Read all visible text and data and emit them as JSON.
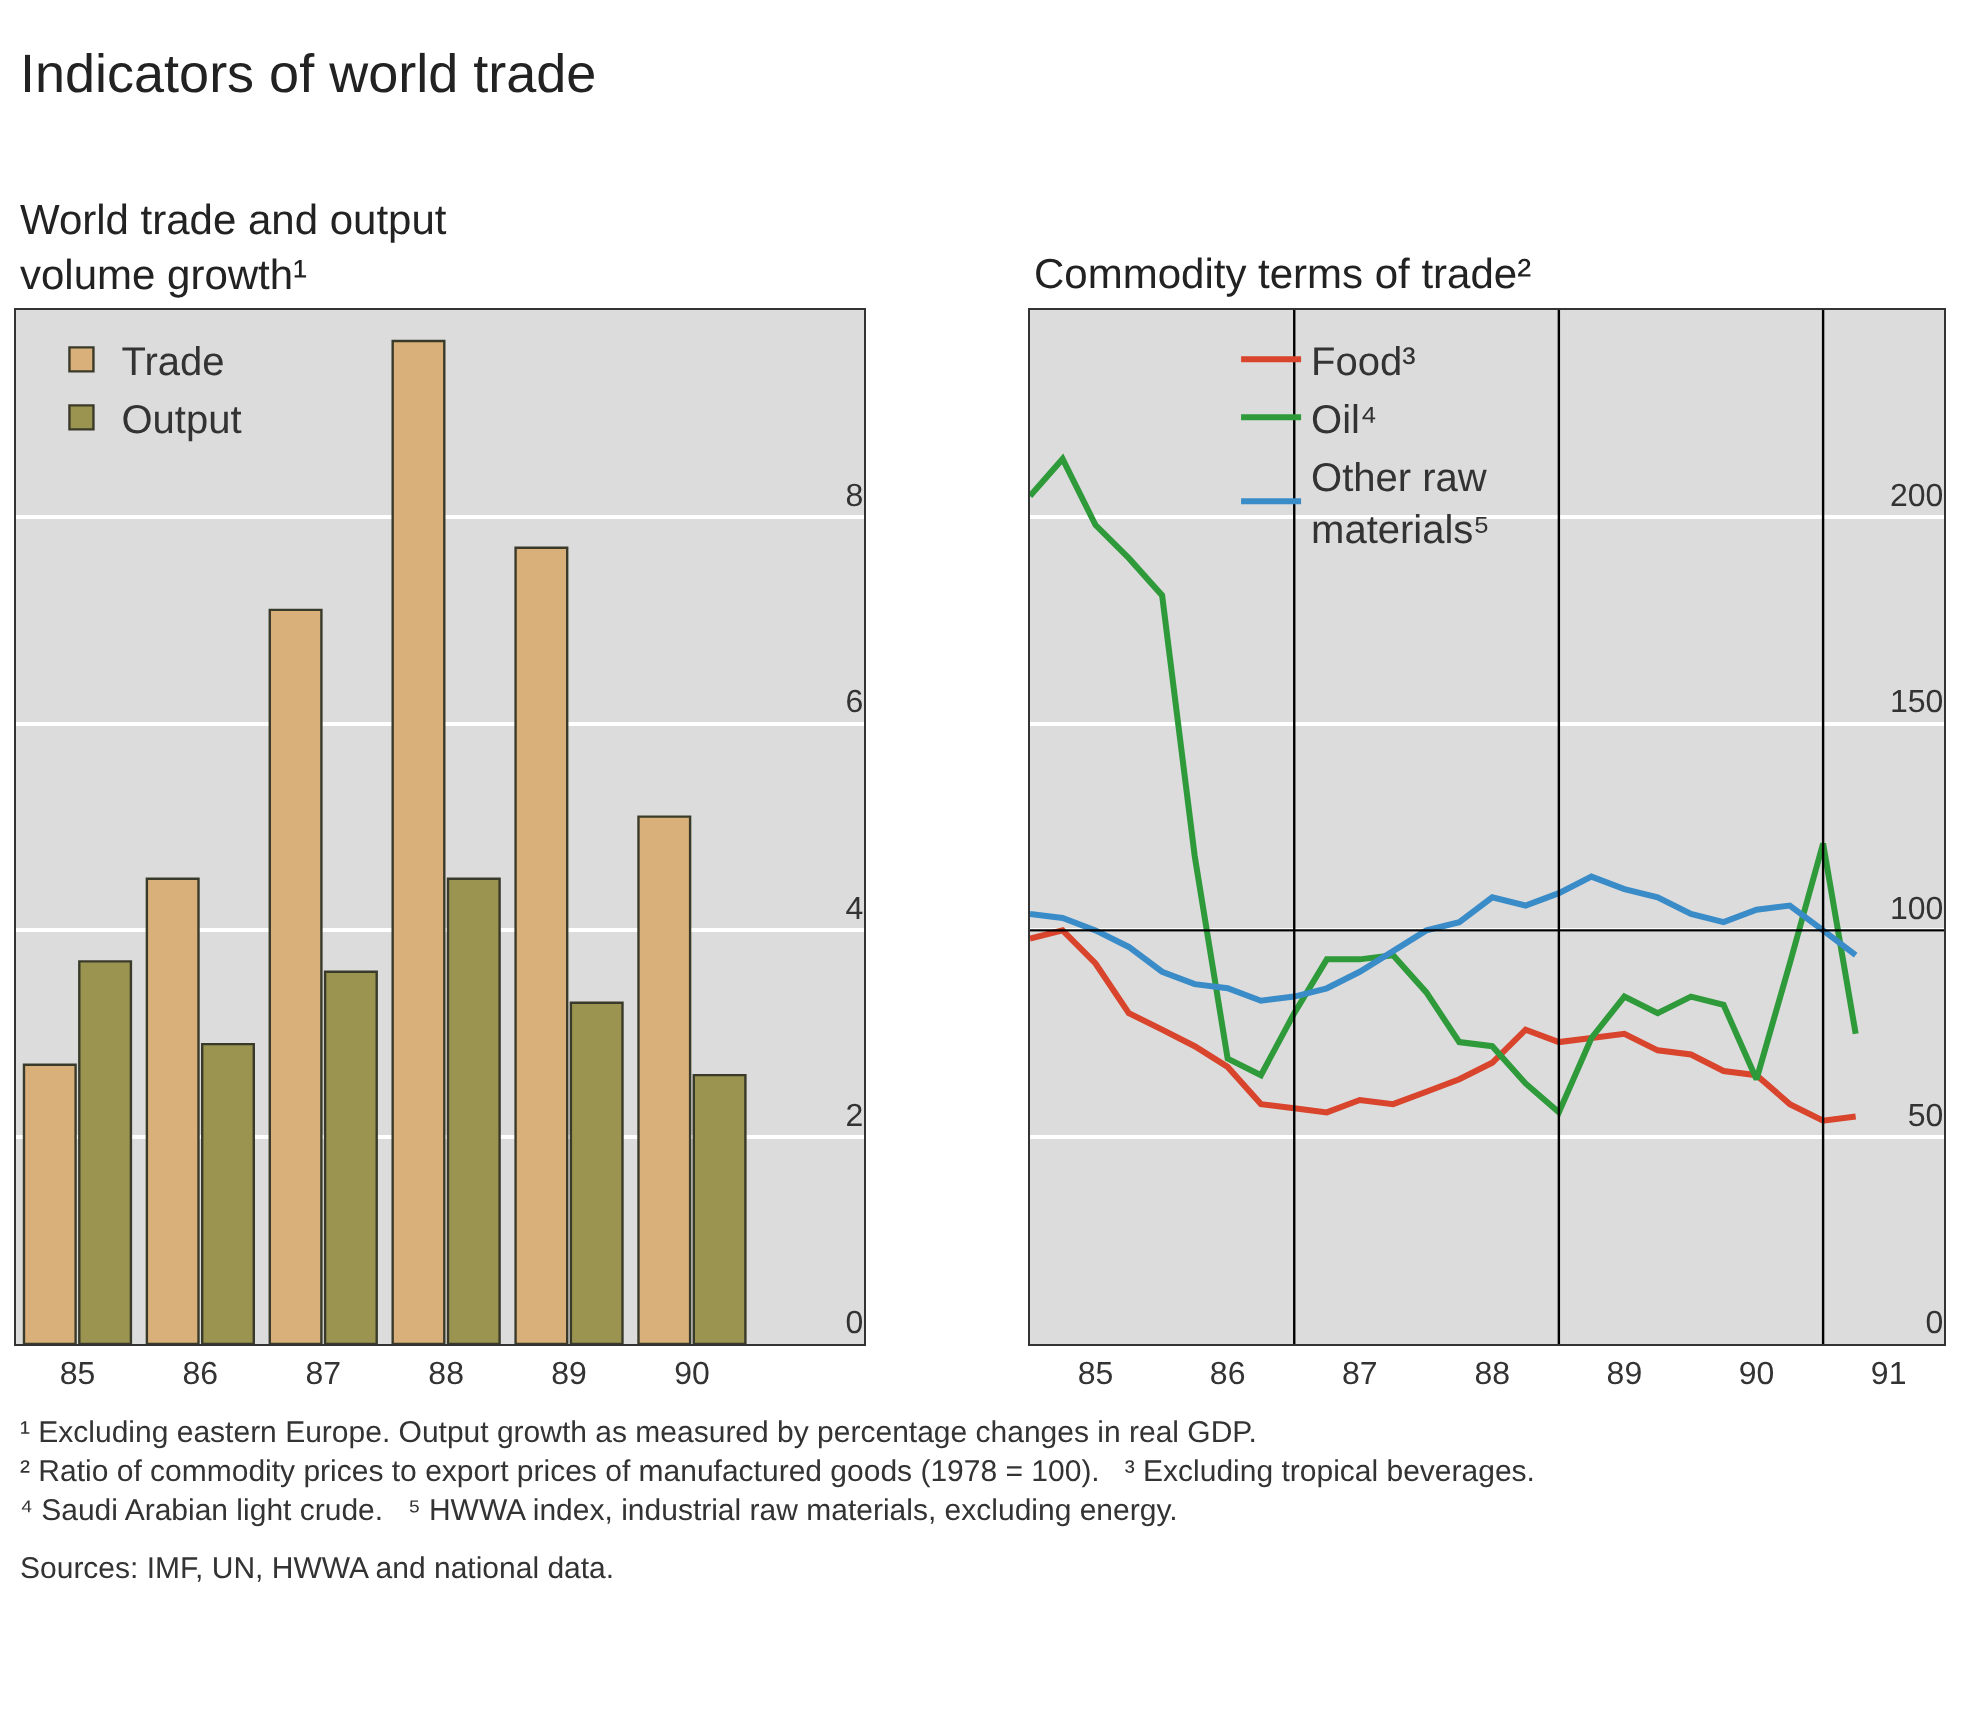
{
  "chart_data": [
    {
      "type": "bar",
      "title": "Indicators of world trade",
      "subtitle": "World trade and output volume growth¹",
      "categories": [
        "85",
        "86",
        "87",
        "88",
        "89",
        "90"
      ],
      "series": [
        {
          "name": "Trade",
          "color": "#d9b07a",
          "values": [
            2.7,
            4.5,
            7.1,
            9.7,
            7.7,
            5.1
          ]
        },
        {
          "name": "Output",
          "color": "#9a9450",
          "values": [
            3.7,
            2.9,
            3.6,
            4.5,
            3.3,
            2.6
          ]
        }
      ],
      "ylim": [
        0,
        10
      ],
      "yticks": [
        0,
        2,
        4,
        6,
        8
      ],
      "grid": "y",
      "legend": "top left"
    },
    {
      "type": "line",
      "subtitle": "Commodity terms of trade²",
      "x": [
        "1985-01",
        "1985-04",
        "1985-07",
        "1985-10",
        "1986-01",
        "1986-04",
        "1986-07",
        "1986-10",
        "1987-01",
        "1987-04",
        "1987-07",
        "1987-10",
        "1988-01",
        "1988-04",
        "1988-07",
        "1988-10",
        "1989-01",
        "1989-04",
        "1989-07",
        "1989-10",
        "1990-01",
        "1990-04",
        "1990-07",
        "1990-10",
        "1991-01",
        "1991-04"
      ],
      "series": [
        {
          "name": "Food³",
          "color": "#d9442c",
          "values": [
            98,
            100,
            92,
            80,
            76,
            72,
            67,
            58,
            57,
            56,
            59,
            58,
            61,
            64,
            68,
            76,
            73,
            74,
            75,
            71,
            70,
            66,
            65,
            58,
            54,
            55
          ]
        },
        {
          "name": "Oil⁴",
          "color": "#2e9a3a",
          "values": [
            205,
            214,
            198,
            190,
            181,
            118,
            69,
            65,
            80,
            93,
            93,
            94,
            85,
            73,
            72,
            63,
            56,
            74,
            84,
            80,
            84,
            82,
            64,
            92,
            121,
            75
          ]
        },
        {
          "name": "Other raw materials⁵",
          "color": "#3a8cc8",
          "values": [
            104,
            103,
            100,
            96,
            90,
            87,
            86,
            83,
            84,
            86,
            90,
            95,
            100,
            102,
            108,
            106,
            109,
            113,
            110,
            108,
            104,
            102,
            105,
            106,
            100,
            94
          ]
        }
      ],
      "xlim": [
        "1985-01",
        "1991-12"
      ],
      "xticks": [
        {
          "value": "1985-07",
          "label": "85"
        },
        {
          "value": "1986-07",
          "label": "86"
        },
        {
          "value": "1987-07",
          "label": "87"
        },
        {
          "value": "1988-07",
          "label": "88"
        },
        {
          "value": "1989-07",
          "label": "89"
        },
        {
          "value": "1990-07",
          "label": "90"
        },
        {
          "value": "1991-07",
          "label": "91"
        }
      ],
      "ylim": [
        0,
        250
      ],
      "yticks": [
        0,
        50,
        100,
        150,
        200
      ],
      "grid": "y",
      "legend": "top",
      "ref_lines": [
        {
          "axis": "y",
          "value": 100,
          "color": "#000000"
        },
        {
          "axis": "x",
          "value": "1987-01",
          "color": "#000000"
        },
        {
          "axis": "x",
          "value": "1989-01",
          "color": "#000000"
        },
        {
          "axis": "x",
          "value": "1991-01",
          "color": "#000000"
        }
      ],
      "annotations": [
        "¹ Excluding eastern Europe. Output growth as measured by percentage changes in real GDP.",
        "² Ratio of commodity prices to export prices of manufactured goods (1978 = 100).",
        "³ Excluding tropical beverages.",
        "⁴ Saudi Arabian light crude.",
        "⁵ HWWA index, industrial raw materials, excluding energy.",
        "Sources: IMF, UN, HWWA and national data."
      ]
    }
  ]
}
